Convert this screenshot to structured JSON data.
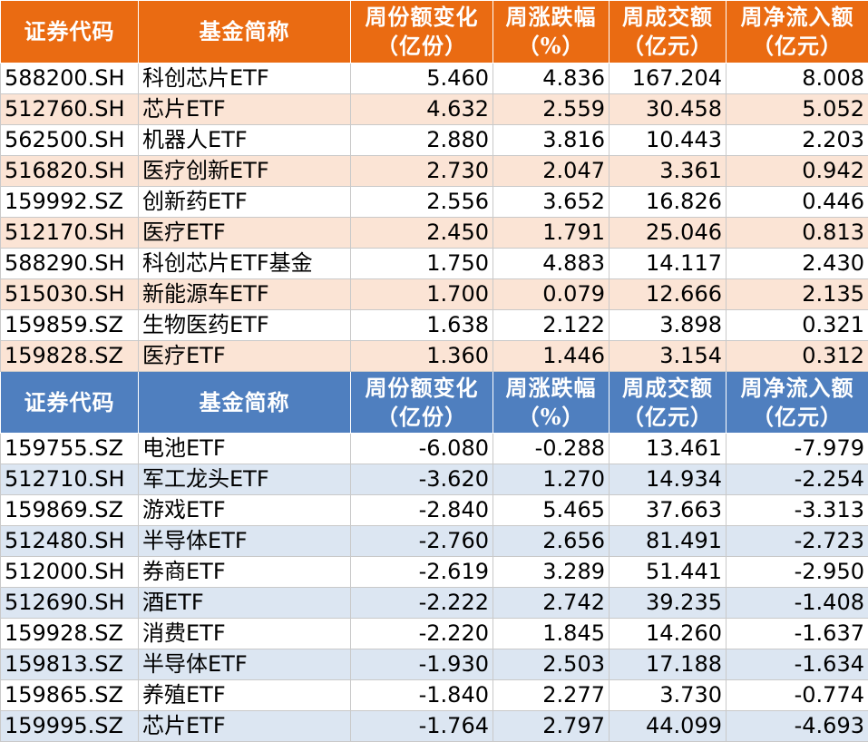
{
  "inflow_header": {
    "code": "证券代码",
    "name": "基金简称",
    "share_change": [
      "周份额变化",
      "（亿份）"
    ],
    "weekly_change": [
      "周涨跌幅",
      "（%）"
    ],
    "turnover": [
      "周成交额",
      "（亿元）"
    ],
    "net_inflow": [
      "周净流入额",
      "（亿元）"
    ]
  },
  "inflow_rows": [
    [
      "588200.SH",
      "科创芯片ETF",
      "5.460",
      "4.836",
      "167.204",
      "8.008"
    ],
    [
      "512760.SH",
      "芯片ETF",
      "4.632",
      "2.559",
      "30.458",
      "5.052"
    ],
    [
      "562500.SH",
      "机器人ETF",
      "2.880",
      "3.816",
      "10.443",
      "2.203"
    ],
    [
      "516820.SH",
      "医疗创新ETF",
      "2.730",
      "2.047",
      "3.361",
      "0.942"
    ],
    [
      "159992.SZ",
      "创新药ETF",
      "2.556",
      "3.652",
      "16.826",
      "0.446"
    ],
    [
      "512170.SH",
      "医疗ETF",
      "2.450",
      "1.791",
      "25.046",
      "0.813"
    ],
    [
      "588290.SH",
      "科创芯片ETF基金",
      "1.750",
      "4.883",
      "14.117",
      "2.430"
    ],
    [
      "515030.SH",
      "新能源车ETF",
      "1.700",
      "0.079",
      "12.666",
      "2.135"
    ],
    [
      "159859.SZ",
      "生物医药ETF",
      "1.638",
      "2.122",
      "3.898",
      "0.321"
    ],
    [
      "159828.SZ",
      "医疗ETF",
      "1.360",
      "1.446",
      "3.154",
      "0.312"
    ]
  ],
  "outflow_header": {
    "code": "证券代码",
    "name": "基金简称",
    "share_change": [
      "周份额变化",
      "（亿份）"
    ],
    "weekly_change": [
      "周涨跌幅",
      "（%）"
    ],
    "turnover": [
      "周成交额",
      "（亿元）"
    ],
    "net_inflow": [
      "周净流入额",
      "（亿元）"
    ]
  },
  "outflow_rows": [
    [
      "159755.SZ",
      "电池ETF",
      "-6.080",
      "-0.288",
      "13.461",
      "-7.979"
    ],
    [
      "512710.SH",
      "军工龙头ETF",
      "-3.620",
      "1.270",
      "14.934",
      "-2.254"
    ],
    [
      "159869.SZ",
      "游戏ETF",
      "-2.840",
      "5.465",
      "37.663",
      "-3.313"
    ],
    [
      "512480.SH",
      "半导体ETF",
      "-2.760",
      "2.656",
      "81.491",
      "-2.723"
    ],
    [
      "512000.SH",
      "券商ETF",
      "-2.619",
      "3.289",
      "51.441",
      "-2.950"
    ],
    [
      "512690.SH",
      "酒ETF",
      "-2.222",
      "2.742",
      "39.235",
      "-1.408"
    ],
    [
      "159928.SZ",
      "消费ETF",
      "-2.220",
      "1.845",
      "14.260",
      "-1.637"
    ],
    [
      "159813.SZ",
      "半导体ETF",
      "-1.930",
      "2.503",
      "17.188",
      "-1.634"
    ],
    [
      "159865.SZ",
      "养殖ETF",
      "-1.840",
      "2.277",
      "3.730",
      "-0.774"
    ],
    [
      "159995.SZ",
      "芯片ETF",
      "-1.764",
      "2.797",
      "44.099",
      "-4.693"
    ]
  ],
  "colors": {
    "inflow_header_bg": "#ea6b12",
    "inflow_stripe": "#fbe4d5",
    "outflow_header_bg": "#4f7fbf",
    "outflow_stripe": "#dce6f2"
  }
}
